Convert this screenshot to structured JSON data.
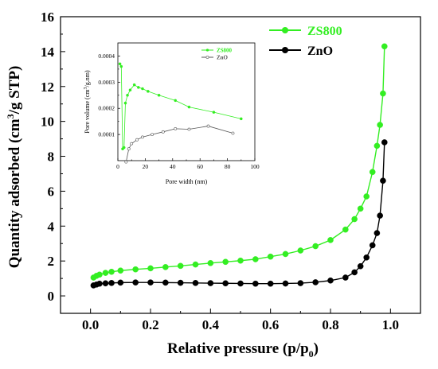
{
  "colors": {
    "zs800": "#33ee22",
    "zno": "#000000",
    "zno_inset": "#555555"
  },
  "legend": {
    "series1": "ZS800",
    "series2": "ZnO"
  },
  "axes": {
    "x_label": "Relative pressure (p/p",
    "x_label_sub": "0",
    "x_label_close": ")",
    "y_label_pre": "Quantity adsorbed (cm",
    "y_label_sup": "3",
    "y_label_post": "/g STP)"
  },
  "inset_axes": {
    "x_label": "Pore width (nm)",
    "y_label_pre": "Pore volume (cm",
    "y_label_sup": "3",
    "y_label_post": "/g.nm)"
  },
  "chart_data": [
    {
      "type": "line",
      "xlabel": "Relative pressure (p/p0)",
      "ylabel": "Quantity adsorbed (cm3/g STP)",
      "xlim": [
        -0.1,
        1.1
      ],
      "ylim": [
        -1,
        16
      ],
      "xticks": [
        "0.0",
        "0.2",
        "0.4",
        "0.6",
        "0.8",
        "1.0"
      ],
      "yticks": [
        "0",
        "2",
        "4",
        "6",
        "8",
        "10",
        "12",
        "14",
        "16"
      ],
      "legend_position": "top-right",
      "series": [
        {
          "name": "ZS800",
          "color": "#33ee22",
          "x": [
            0.01,
            0.02,
            0.03,
            0.05,
            0.07,
            0.1,
            0.15,
            0.2,
            0.25,
            0.3,
            0.35,
            0.4,
            0.45,
            0.5,
            0.55,
            0.6,
            0.65,
            0.7,
            0.75,
            0.8,
            0.85,
            0.88,
            0.9,
            0.92,
            0.94,
            0.955,
            0.965,
            0.975,
            0.98
          ],
          "y": [
            1.05,
            1.15,
            1.22,
            1.32,
            1.38,
            1.45,
            1.52,
            1.58,
            1.65,
            1.72,
            1.8,
            1.88,
            1.95,
            2.02,
            2.1,
            2.25,
            2.4,
            2.6,
            2.85,
            3.2,
            3.8,
            4.4,
            5.0,
            5.7,
            7.1,
            8.6,
            9.8,
            11.6,
            14.3
          ]
        },
        {
          "name": "ZnO",
          "color": "#000000",
          "x": [
            0.01,
            0.02,
            0.03,
            0.05,
            0.07,
            0.1,
            0.15,
            0.2,
            0.25,
            0.3,
            0.35,
            0.4,
            0.45,
            0.5,
            0.55,
            0.6,
            0.65,
            0.7,
            0.75,
            0.8,
            0.85,
            0.88,
            0.9,
            0.92,
            0.94,
            0.955,
            0.965,
            0.975,
            0.98
          ],
          "y": [
            0.6,
            0.65,
            0.7,
            0.72,
            0.74,
            0.76,
            0.77,
            0.77,
            0.76,
            0.75,
            0.74,
            0.73,
            0.72,
            0.71,
            0.7,
            0.7,
            0.71,
            0.73,
            0.78,
            0.88,
            1.05,
            1.35,
            1.7,
            2.2,
            2.9,
            3.6,
            4.6,
            6.6,
            8.8
          ]
        }
      ]
    },
    {
      "type": "line",
      "xlabel": "Pore width (nm)",
      "ylabel": "Pore volume (cm3/g.nm)",
      "xlim": [
        0,
        100
      ],
      "ylim": [
        0,
        0.00045
      ],
      "xticks": [
        "0",
        "20",
        "40",
        "60",
        "80",
        "100"
      ],
      "yticks": [
        "0.0001",
        "0.0002",
        "0.0003",
        "0.0004"
      ],
      "legend_position": "top-right",
      "series": [
        {
          "name": "ZS800",
          "color": "#33ee22",
          "x": [
            1.5,
            2.5,
            3.5,
            4.5,
            5.5,
            7,
            9,
            12,
            15,
            18,
            22,
            30,
            42,
            52,
            70,
            90
          ],
          "y": [
            0.00037,
            0.00036,
            4.5e-05,
            5e-05,
            0.00022,
            0.00025,
            0.00027,
            0.00029,
            0.00028,
            0.000275,
            0.000265,
            0.00025,
            0.00023,
            0.000205,
            0.000185,
            0.00016
          ]
        },
        {
          "name": "ZnO",
          "color": "#555555",
          "x": [
            6,
            8,
            10,
            14,
            18,
            25,
            33,
            42,
            52,
            66,
            84
          ],
          "y": [
            -5e-06,
            4.5e-05,
            6.5e-05,
            8e-05,
            9e-05,
            0.0001,
            0.00011,
            0.000122,
            0.00012,
            0.000132,
            0.000105
          ]
        }
      ]
    }
  ]
}
